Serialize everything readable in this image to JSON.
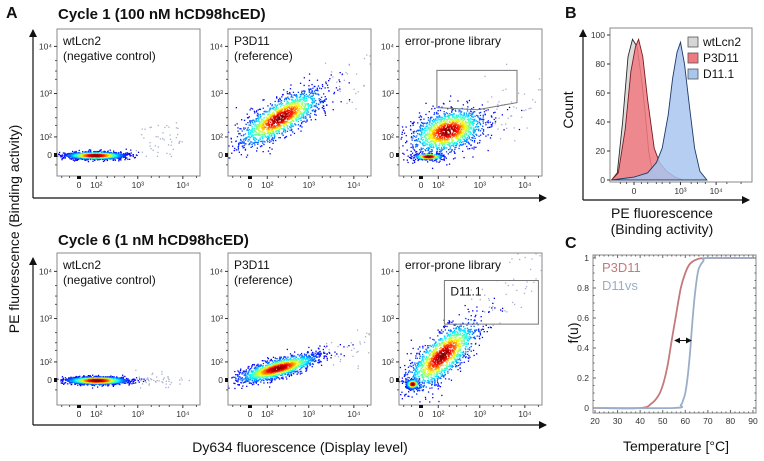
{
  "chart_data": [
    {
      "panel": "A",
      "type": "scatter",
      "ylabel": "PE fluorescence (Binding activity)",
      "xlabel": "Dy634 fluorescence (Display level)",
      "scale": "biexponential",
      "x_ticks": [
        {
          "value": 0,
          "label": "0"
        },
        {
          "value": 100,
          "label": "10²"
        },
        {
          "value": 1000,
          "label": "10³"
        },
        {
          "value": 10000,
          "label": "10⁴"
        }
      ],
      "y_ticks": [
        {
          "value": 0,
          "label": "0"
        },
        {
          "value": 100,
          "label": "10²"
        },
        {
          "value": 1000,
          "label": "10³"
        },
        {
          "value": 10000,
          "label": "10⁴"
        }
      ],
      "rows": [
        {
          "title": "Cycle 1 (100 nM hCD98hcED)",
          "plots": [
            {
              "label1": "wtLcn2",
              "label2": "(negative control)",
              "populations": [
                {
                  "from": [
                    -100,
                    0
                  ],
                  "to": [
                    600,
                    0
                  ],
                  "thickness": 0.4
                }
              ]
            },
            {
              "label1": "P3D11",
              "label2": "(reference)",
              "populations": [
                {
                  "from": [
                    -100,
                    50
                  ],
                  "to": [
                    2500,
                    1200
                  ],
                  "thickness": 1.8
                }
              ]
            },
            {
              "label1": "error-prone library",
              "label2": "",
              "populations": [
                {
                  "from": [
                    -80,
                    60
                  ],
                  "to": [
                    1500,
                    300
                  ],
                  "thickness": 2.2
                },
                {
                  "from": [
                    -50,
                    -5
                  ],
                  "to": [
                    150,
                    -5
                  ],
                  "thickness": 0.35
                }
              ],
              "gate": {
                "label": "",
                "vertices": [
                  [
                    90,
                    3100
                  ],
                  [
                    6700,
                    3100
                  ],
                  [
                    6700,
                    640
                  ],
                  [
                    900,
                    450
                  ],
                  [
                    90,
                    500
                  ]
                ]
              }
            }
          ]
        },
        {
          "title": "Cycle 6 (1 nM hCD98hcED)",
          "plots": [
            {
              "label1": "wtLcn2",
              "label2": "(negative control)",
              "populations": [
                {
                  "from": [
                    -100,
                    0
                  ],
                  "to": [
                    700,
                    0
                  ],
                  "thickness": 0.42
                }
              ]
            },
            {
              "label1": "P3D11",
              "label2": "(reference)",
              "populations": [
                {
                  "from": [
                    -100,
                    0
                  ],
                  "to": [
                    2000,
                    150
                  ],
                  "thickness": 1.0
                }
              ]
            },
            {
              "label1": "error-prone library",
              "label2": "",
              "populations": [
                {
                  "from": [
                    -100,
                    -60
                  ],
                  "to": [
                    1000,
                    1000
                  ],
                  "thickness": 2.0
                },
                {
                  "from": [
                    -90,
                    -20
                  ],
                  "to": [
                    -10,
                    -15
                  ],
                  "thickness": 0.5
                }
              ],
              "gate": {
                "label": "D11.1",
                "vertices": [
                  [
                    150,
                    6400
                  ],
                  [
                    20000,
                    6400
                  ],
                  [
                    20000,
                    760
                  ],
                  [
                    150,
                    760
                  ]
                ]
              }
            }
          ]
        }
      ]
    },
    {
      "panel": "B",
      "type": "area",
      "xlabel_line1": "PE fluorescence",
      "xlabel_line2": "(Binding activity)",
      "ylabel": "Count",
      "ylim": [
        0,
        100
      ],
      "x_ticks": [
        {
          "value": 0,
          "label": "0"
        },
        {
          "value": 1000,
          "label": "10³"
        },
        {
          "value": 10000,
          "label": "10⁴"
        }
      ],
      "y_ticks": [
        0,
        20,
        40,
        60,
        80,
        100
      ],
      "legend_position": "top-right",
      "series": [
        {
          "name": "wtLcn2",
          "color": "#d6d6d6",
          "stroke": "#2a2a2a",
          "x": [
            -200,
            -130,
            -80,
            -40,
            -10,
            20,
            50,
            80,
            110,
            150,
            250
          ],
          "y": [
            0,
            5,
            40,
            85,
            97,
            92,
            70,
            45,
            20,
            5,
            0
          ]
        },
        {
          "name": "P3D11",
          "color": "#f07a80",
          "stroke": "#7a1a1f",
          "x": [
            -200,
            -120,
            -60,
            -20,
            10,
            30,
            60,
            100,
            170,
            250,
            400,
            700,
            1200
          ],
          "y": [
            0,
            5,
            35,
            75,
            92,
            97,
            85,
            55,
            22,
            12,
            6,
            2,
            0
          ]
        },
        {
          "name": "D11.1",
          "color": "#a8c6ee",
          "stroke": "#1d3a66",
          "x": [
            -200,
            0,
            100,
            200,
            300,
            450,
            600,
            800,
            1000,
            1300,
            1800,
            2500,
            3500,
            5500
          ],
          "y": [
            0,
            2,
            5,
            12,
            22,
            45,
            70,
            88,
            95,
            80,
            50,
            22,
            6,
            0
          ]
        }
      ]
    },
    {
      "panel": "C",
      "type": "line",
      "xlabel": "Temperature [°C]",
      "ylabel": "f(u)",
      "xlim": [
        20,
        90
      ],
      "ylim": [
        0,
        1
      ],
      "x_ticks": [
        20,
        30,
        40,
        50,
        60,
        70,
        80,
        90
      ],
      "y_ticks": [
        {
          "value": 0,
          "label": "0"
        },
        {
          "value": 0.2,
          "label": "0.2"
        },
        {
          "value": 0.4,
          "label": "0.4"
        },
        {
          "value": 0.6,
          "label": "0.6"
        },
        {
          "value": 0.8,
          "label": "0.8"
        },
        {
          "value": 1,
          "label": "1"
        }
      ],
      "series": [
        {
          "name": "P3D11",
          "color": "#c47a7a",
          "x": [
            20,
            40,
            45,
            48,
            50,
            52,
            54,
            56,
            58,
            60,
            62,
            65,
            70,
            90
          ],
          "y": [
            0,
            0,
            0.03,
            0.08,
            0.15,
            0.27,
            0.45,
            0.63,
            0.8,
            0.9,
            0.96,
            0.99,
            1,
            1
          ]
        },
        {
          "name": "D11vs",
          "color": "#9aaec8",
          "x": [
            20,
            55,
            58,
            59,
            60,
            61,
            62,
            63,
            64,
            65,
            66,
            68,
            70,
            90
          ],
          "y": [
            0,
            0,
            0.02,
            0.05,
            0.1,
            0.2,
            0.35,
            0.55,
            0.72,
            0.85,
            0.93,
            0.98,
            1,
            1
          ]
        }
      ],
      "annotation": {
        "type": "double-arrow",
        "x": [
          55.5,
          62.5
        ],
        "y": 0.45
      }
    }
  ],
  "panel_labels": {
    "a": "A",
    "b": "B",
    "c": "C"
  }
}
